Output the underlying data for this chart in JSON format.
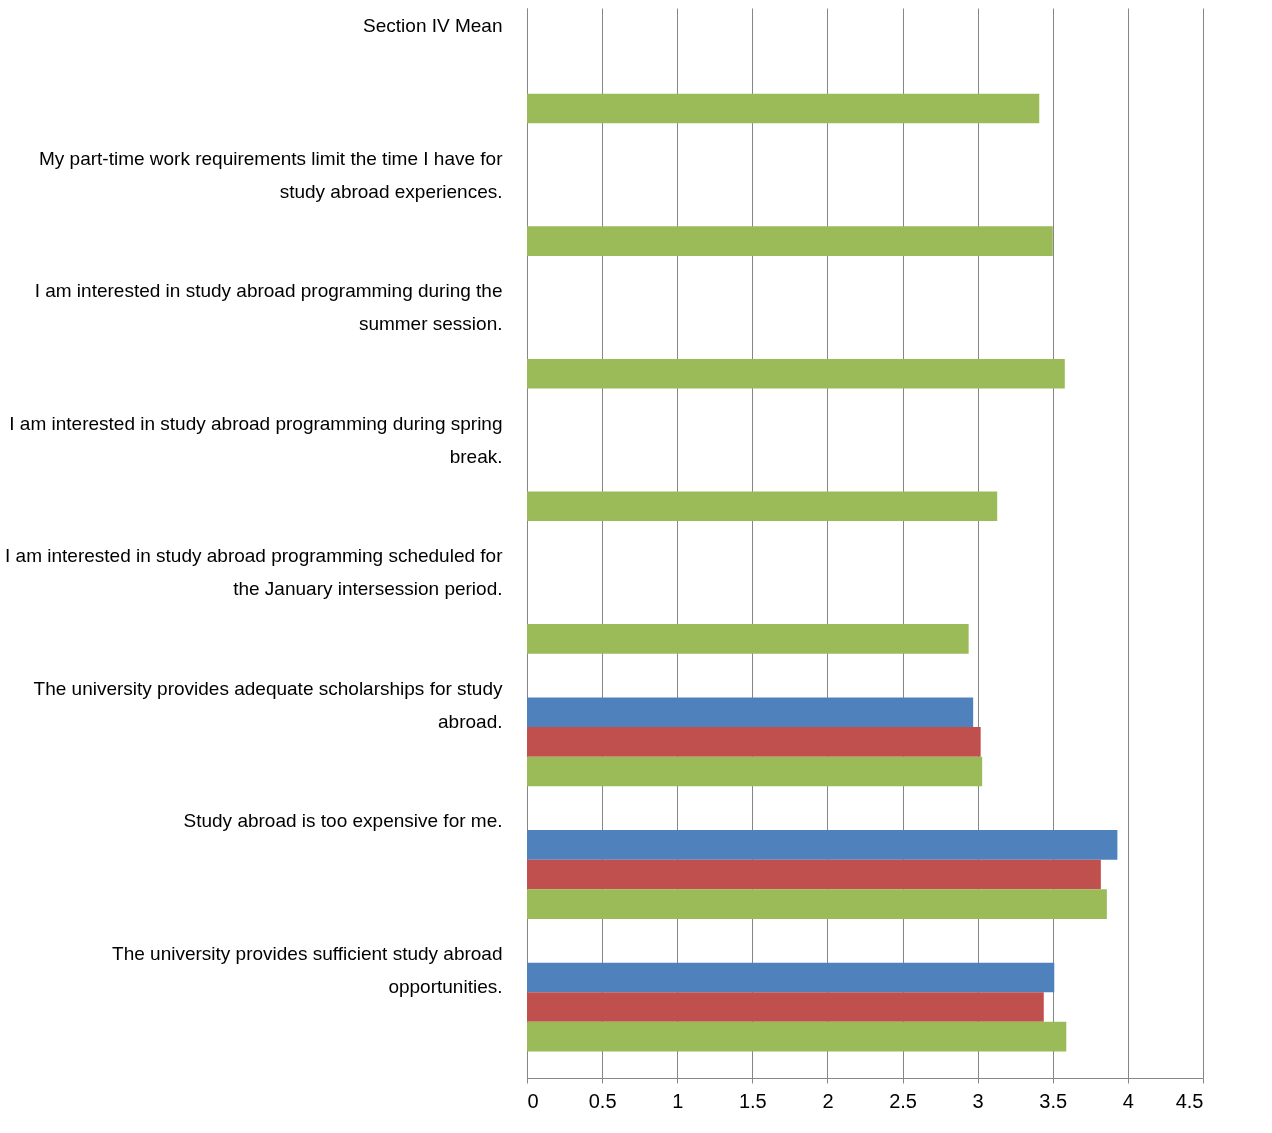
{
  "chart_data": {
    "type": "bar",
    "orientation": "horizontal",
    "categories": [
      "Section IV Mean",
      "My part-time work requirements limit the time I have for study abroad experiences.",
      "I am interested in study abroad programming during the summer session.",
      "I am interested in study abroad programming during spring break.",
      "I am interested in study abroad programming scheduled for the January intersession period.",
      "The university provides adequate scholarships for study abroad.",
      "Study abroad is too expensive for me.",
      "The university provides sufficient study abroad opportunities."
    ],
    "series": [
      {
        "color": "#4f81bd",
        "values": [
          null,
          null,
          null,
          null,
          null,
          2.97,
          3.93,
          3.51
        ]
      },
      {
        "color": "#c0504d",
        "values": [
          null,
          null,
          null,
          null,
          null,
          3.02,
          3.82,
          3.44
        ]
      },
      {
        "color": "#9bbb59",
        "values": [
          3.41,
          3.5,
          3.58,
          3.13,
          2.94,
          3.03,
          3.86,
          3.59
        ]
      }
    ],
    "xlim": [
      0,
      4.5
    ],
    "xticks": [
      0,
      0.5,
      1,
      1.5,
      2,
      2.5,
      3,
      3.5,
      4,
      4.5
    ],
    "grid": true
  }
}
